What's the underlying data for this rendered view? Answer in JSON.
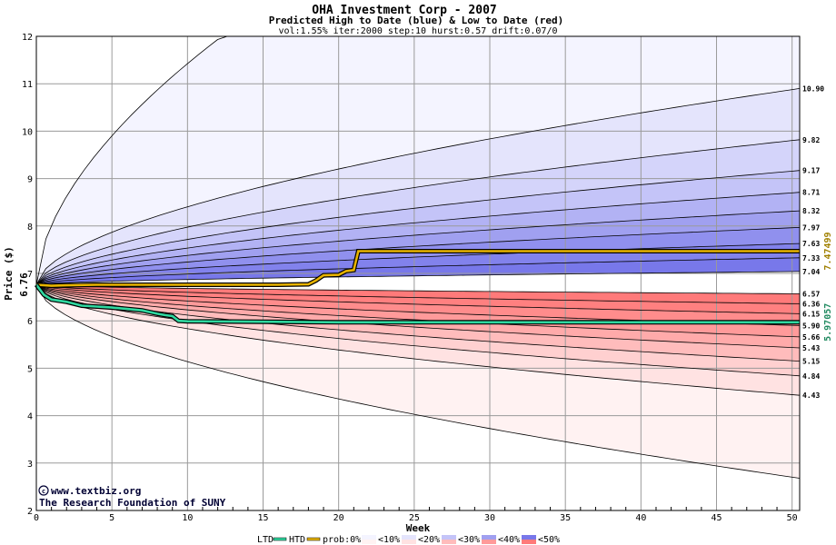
{
  "chart_data": {
    "type": "area",
    "title": "OHA Investment Corp - 2007",
    "subtitle": "Predicted High to Date (blue) &  Low to Date (red)",
    "params": "vol:1.55% iter:2000 step:10 hurst:0.57 drift:0.07/0",
    "xlabel": "Week",
    "ylabel": "Price ($)",
    "xlim": [
      0,
      50.5
    ],
    "ylim": [
      2,
      12
    ],
    "x_ticks": [
      0,
      5,
      10,
      15,
      20,
      25,
      30,
      35,
      40,
      45,
      50
    ],
    "y_ticks": [
      2,
      3,
      4,
      5,
      6,
      7,
      8,
      9,
      10,
      11,
      12
    ],
    "grid": true,
    "start_price": 6.76,
    "start_label": "6.76",
    "high_quantile_ends": [
      7.04,
      7.33,
      7.63,
      7.97,
      8.32,
      8.71,
      9.17,
      9.82,
      10.9
    ],
    "high_quantile_labels": [
      "7.04",
      "7.33",
      "7.63",
      "7.97",
      "8.32",
      "8.71",
      "9.17",
      "9.82",
      "10.90"
    ],
    "high_outer_end": 12.0,
    "low_quantile_ends": [
      6.57,
      6.36,
      6.15,
      5.9,
      5.66,
      5.43,
      5.15,
      4.84,
      4.43
    ],
    "low_quantile_labels": [
      "6.57",
      "6.36",
      "6.15",
      "5.90",
      "5.66",
      "5.43",
      "5.15",
      "4.84",
      "4.43"
    ],
    "low_outer_end": 2.68,
    "htd_series": {
      "name": "HTD",
      "color": "#e8b400",
      "x": [
        0,
        1,
        2,
        4,
        8,
        12,
        16,
        18,
        18.5,
        19,
        20,
        20.5,
        21,
        21.3,
        25,
        30,
        35,
        40,
        45,
        50.5
      ],
      "y": [
        6.76,
        6.74,
        6.75,
        6.76,
        6.76,
        6.76,
        6.76,
        6.77,
        6.85,
        6.96,
        6.97,
        7.05,
        7.07,
        7.47,
        7.47,
        7.47,
        7.47,
        7.47,
        7.47,
        7.47
      ]
    },
    "htd_end_label": "7.47499",
    "ltd_series": {
      "name": "LTD",
      "color": "#30d8a0",
      "x": [
        0,
        0.5,
        1,
        2,
        3,
        4,
        5,
        6,
        7,
        8,
        8.5,
        9,
        9.4,
        10,
        15,
        20,
        25,
        30,
        35,
        40,
        45,
        50.5
      ],
      "y": [
        6.76,
        6.55,
        6.45,
        6.4,
        6.32,
        6.3,
        6.28,
        6.25,
        6.22,
        6.15,
        6.12,
        6.1,
        6.0,
        5.99,
        5.98,
        5.97,
        5.97,
        5.97,
        5.97,
        5.97,
        5.97,
        5.97
      ]
    },
    "ltd_end_label": "5.97057",
    "colors": {
      "blue_bands": [
        "#f4f4ff",
        "#e4e4fc",
        "#d4d4fa",
        "#c4c4f8",
        "#b2b2f4",
        "#a0a0f0",
        "#9090ee",
        "#8282ec",
        "#7878ea"
      ],
      "red_bands": [
        "#fff2f2",
        "#ffe2e2",
        "#ffd0d0",
        "#ffbcbc",
        "#ffaaaa",
        "#ff9a9a",
        "#ff8c8c",
        "#ff8080",
        "#ff7a7a"
      ]
    },
    "legend": {
      "placement": "bottom",
      "ltd": "LTD",
      "htd": "HTD",
      "prob": "prob:0%",
      "buckets": [
        "<10%",
        "<20%",
        "<30%",
        "<40%",
        "<50%"
      ]
    },
    "watermark_1": "www.textbiz.org",
    "watermark_2": "The Research Foundation of SUNY"
  }
}
